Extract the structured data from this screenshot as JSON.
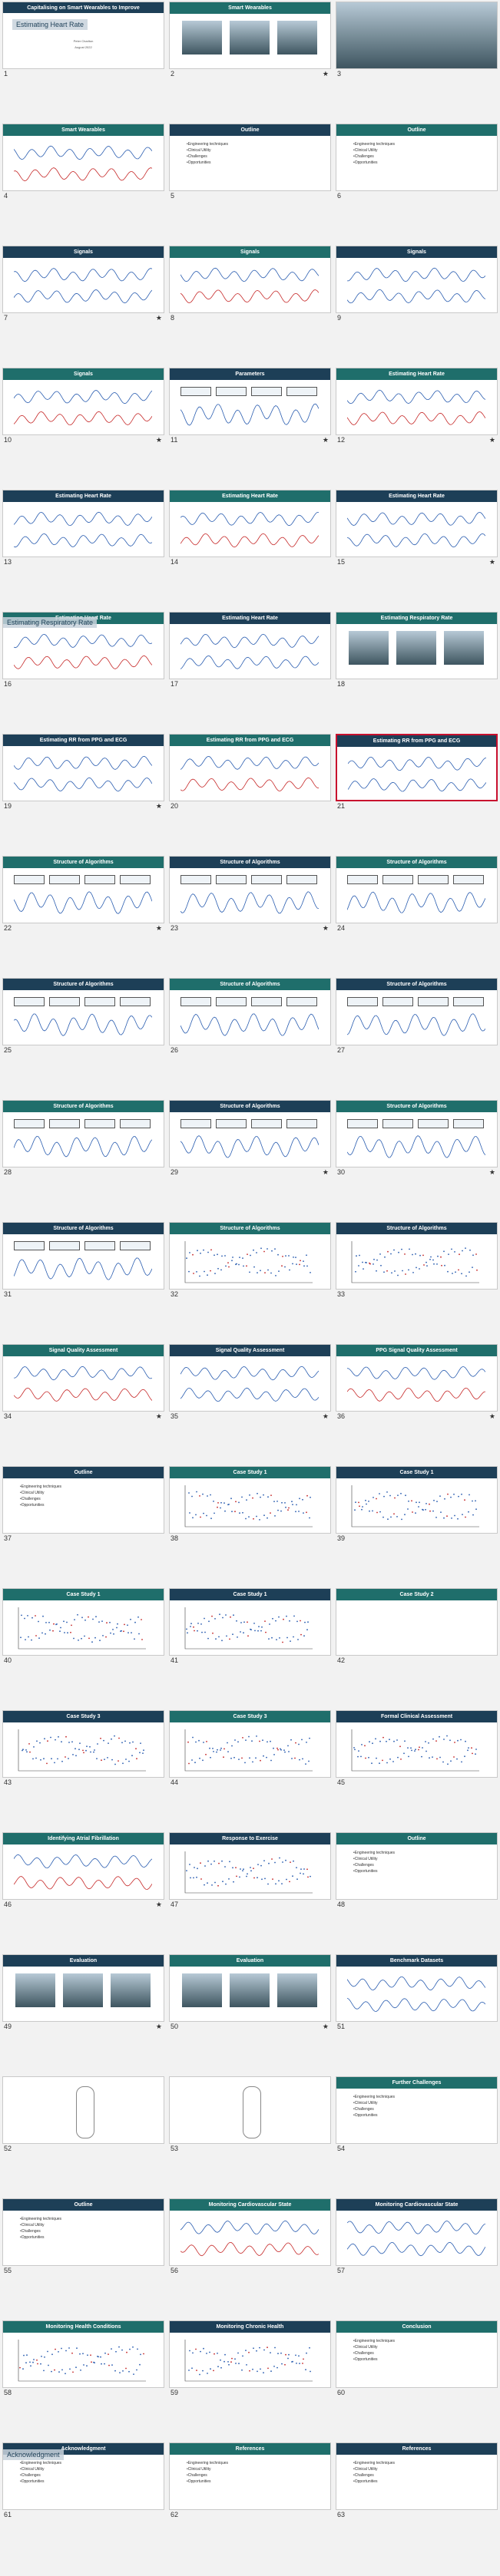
{
  "colors": {
    "header": "#1f6e6b",
    "header_dark": "#1d3f57",
    "selection": "#c8102e",
    "signal": "#2a5db0",
    "accent": "#c62828"
  },
  "title_slide": {
    "title": "Capitalising on Smart Wearables to Improve",
    "overlay": "Estimating Heart Rate",
    "author": "Peter Charlton",
    "date": "August 2022"
  },
  "overlays": {
    "s16": "Estimating Respiratory Rate",
    "s61": "Acknowledgment"
  },
  "slides": [
    {
      "n": "1",
      "title": "",
      "kind": "title",
      "star": ""
    },
    {
      "n": "2",
      "title": "Smart Wearables",
      "kind": "wear",
      "star": "★"
    },
    {
      "n": "3",
      "title": "",
      "kind": "photo",
      "star": ""
    },
    {
      "n": "4",
      "title": "Smart Wearables",
      "kind": "wave",
      "star": ""
    },
    {
      "n": "5",
      "title": "Outline",
      "kind": "outline",
      "star": ""
    },
    {
      "n": "6",
      "title": "Outline",
      "kind": "outline",
      "star": ""
    },
    {
      "n": "7",
      "title": "Signals",
      "kind": "wave",
      "star": "★"
    },
    {
      "n": "8",
      "title": "Signals",
      "kind": "wave",
      "star": ""
    },
    {
      "n": "9",
      "title": "Signals",
      "kind": "wave",
      "star": ""
    },
    {
      "n": "10",
      "title": "Signals",
      "kind": "wave",
      "star": "★"
    },
    {
      "n": "11",
      "title": "Parameters",
      "kind": "boxes",
      "star": "★"
    },
    {
      "n": "12",
      "title": "Estimating Heart Rate",
      "kind": "wave",
      "star": "★"
    },
    {
      "n": "13",
      "title": "Estimating Heart Rate",
      "kind": "wave",
      "star": ""
    },
    {
      "n": "14",
      "title": "Estimating Heart Rate",
      "kind": "wave",
      "star": ""
    },
    {
      "n": "15",
      "title": "Estimating Heart Rate",
      "kind": "wave",
      "star": "★"
    },
    {
      "n": "16",
      "title": "Estimating Heart Rate",
      "kind": "wave",
      "star": ""
    },
    {
      "n": "17",
      "title": "Estimating Heart Rate",
      "kind": "wave",
      "star": ""
    },
    {
      "n": "18",
      "title": "Estimating Respiratory Rate",
      "kind": "people",
      "star": ""
    },
    {
      "n": "19",
      "title": "Estimating RR from PPG and ECG",
      "kind": "wave",
      "star": "★"
    },
    {
      "n": "20",
      "title": "Estimating RR from PPG and ECG",
      "kind": "wave",
      "star": ""
    },
    {
      "n": "21",
      "title": "Estimating RR from PPG and ECG",
      "kind": "wave",
      "star": "",
      "selected": true
    },
    {
      "n": "22",
      "title": "Structure of Algorithms",
      "kind": "boxes",
      "star": "★"
    },
    {
      "n": "23",
      "title": "Structure of Algorithms",
      "kind": "boxes",
      "star": "★"
    },
    {
      "n": "24",
      "title": "Structure of Algorithms",
      "kind": "boxes",
      "star": ""
    },
    {
      "n": "25",
      "title": "Structure of Algorithms",
      "kind": "boxes",
      "star": ""
    },
    {
      "n": "26",
      "title": "Structure of Algorithms",
      "kind": "boxes",
      "star": ""
    },
    {
      "n": "27",
      "title": "Structure of Algorithms",
      "kind": "boxes",
      "star": ""
    },
    {
      "n": "28",
      "title": "Structure of Algorithms",
      "kind": "boxes",
      "star": ""
    },
    {
      "n": "29",
      "title": "Structure of Algorithms",
      "kind": "boxes",
      "star": "★"
    },
    {
      "n": "30",
      "title": "Structure of Algorithms",
      "kind": "boxes",
      "star": "★"
    },
    {
      "n": "31",
      "title": "Structure of Algorithms",
      "kind": "boxes",
      "star": ""
    },
    {
      "n": "32",
      "title": "Structure of Algorithms",
      "kind": "scatter",
      "star": ""
    },
    {
      "n": "33",
      "title": "Structure of Algorithms",
      "kind": "scatter",
      "star": ""
    },
    {
      "n": "34",
      "title": "Signal Quality Assessment",
      "kind": "wave",
      "star": "★"
    },
    {
      "n": "35",
      "title": "Signal Quality Assessment",
      "kind": "wave",
      "star": "★"
    },
    {
      "n": "36",
      "title": "PPG Signal Quality Assessment",
      "kind": "wave",
      "star": "★"
    },
    {
      "n": "37",
      "title": "Outline",
      "kind": "outline",
      "star": ""
    },
    {
      "n": "38",
      "title": "Case Study 1",
      "kind": "scatter",
      "star": ""
    },
    {
      "n": "39",
      "title": "Case Study 1",
      "kind": "scatter",
      "star": ""
    },
    {
      "n": "40",
      "title": "Case Study 1",
      "kind": "scatter",
      "star": ""
    },
    {
      "n": "41",
      "title": "Case Study 1",
      "kind": "scatter",
      "star": ""
    },
    {
      "n": "42",
      "title": "Case Study 2",
      "kind": "blank",
      "star": ""
    },
    {
      "n": "43",
      "title": "Case Study 3",
      "kind": "scatter",
      "star": ""
    },
    {
      "n": "44",
      "title": "Case Study 3",
      "kind": "scatter",
      "star": ""
    },
    {
      "n": "45",
      "title": "Formal Clinical Assessment",
      "kind": "scatter",
      "star": ""
    },
    {
      "n": "46",
      "title": "Identifying Atrial Fibrillation",
      "kind": "wave",
      "star": "★"
    },
    {
      "n": "47",
      "title": "Response to Exercise",
      "kind": "scatter",
      "star": ""
    },
    {
      "n": "48",
      "title": "Outline",
      "kind": "outline",
      "star": ""
    },
    {
      "n": "49",
      "title": "Evaluation",
      "kind": "wear",
      "star": "★"
    },
    {
      "n": "50",
      "title": "Evaluation",
      "kind": "people",
      "star": "★"
    },
    {
      "n": "51",
      "title": "Benchmark Datasets",
      "kind": "wave",
      "star": ""
    },
    {
      "n": "52",
      "title": "",
      "kind": "body",
      "star": ""
    },
    {
      "n": "53",
      "title": "",
      "kind": "body",
      "star": ""
    },
    {
      "n": "54",
      "title": "Further Challenges",
      "kind": "outline",
      "star": ""
    },
    {
      "n": "55",
      "title": "Outline",
      "kind": "outline",
      "star": ""
    },
    {
      "n": "56",
      "title": "Monitoring Cardiovascular State",
      "kind": "wave",
      "star": ""
    },
    {
      "n": "57",
      "title": "Monitoring Cardiovascular State",
      "kind": "wave",
      "star": ""
    },
    {
      "n": "58",
      "title": "Monitoring Health Conditions",
      "kind": "scatter",
      "star": ""
    },
    {
      "n": "59",
      "title": "Monitoring Chronic Health",
      "kind": "scatter",
      "star": ""
    },
    {
      "n": "60",
      "title": "Conclusion",
      "kind": "outline",
      "star": ""
    },
    {
      "n": "61",
      "title": "Acknowledgment",
      "kind": "text",
      "star": ""
    },
    {
      "n": "62",
      "title": "References",
      "kind": "text",
      "star": ""
    },
    {
      "n": "63",
      "title": "References",
      "kind": "text",
      "star": ""
    }
  ],
  "outline_items": [
    "Engineering techniques",
    "Clinical Utility",
    "Challenges",
    "Opportunities"
  ]
}
